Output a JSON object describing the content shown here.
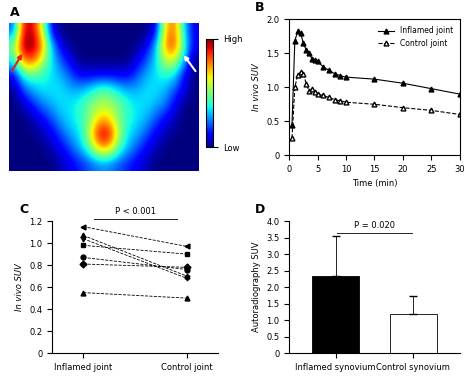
{
  "chart_data": [
    {
      "type": "image",
      "title": "A",
      "tick_labels": false,
      "cells": [
        [
          0.2,
          0.9,
          0.95,
          0.6,
          0.1,
          0,
          0,
          0,
          0,
          0,
          0,
          0,
          0,
          0,
          0,
          0.1,
          0.7,
          0.8,
          0.3,
          0.1
        ],
        [
          0.5,
          1.0,
          1.0,
          0.8,
          0.3,
          0.1,
          0,
          0,
          0,
          0,
          0,
          0,
          0,
          0,
          0.1,
          0.3,
          0.8,
          0.85,
          0.4,
          0.1
        ],
        [
          0.4,
          0.8,
          0.85,
          0.6,
          0.35,
          0.2,
          0.1,
          0,
          0,
          0,
          0,
          0,
          0,
          0.1,
          0.2,
          0.35,
          0.6,
          0.6,
          0.3,
          0
        ],
        [
          0.1,
          0.4,
          0.45,
          0.4,
          0.35,
          0.3,
          0.2,
          0.1,
          0.1,
          0.1,
          0.1,
          0.1,
          0.1,
          0.2,
          0.3,
          0.35,
          0.4,
          0.35,
          0.1,
          0
        ],
        [
          0,
          0.2,
          0.3,
          0.35,
          0.35,
          0.35,
          0.3,
          0.3,
          0.35,
          0.45,
          0.45,
          0.35,
          0.3,
          0.3,
          0.35,
          0.35,
          0.3,
          0.2,
          0.1,
          0
        ],
        [
          0,
          0.05,
          0.15,
          0.25,
          0.3,
          0.35,
          0.35,
          0.4,
          0.5,
          0.55,
          0.55,
          0.5,
          0.4,
          0.35,
          0.35,
          0.3,
          0.25,
          0.1,
          0,
          0
        ],
        [
          0,
          0,
          0.05,
          0.1,
          0.2,
          0.3,
          0.35,
          0.4,
          0.5,
          0.7,
          0.7,
          0.5,
          0.4,
          0.35,
          0.3,
          0.2,
          0.1,
          0.05,
          0,
          0
        ],
        [
          0,
          0,
          0,
          0.05,
          0.1,
          0.2,
          0.3,
          0.35,
          0.6,
          0.95,
          0.95,
          0.6,
          0.35,
          0.3,
          0.2,
          0.1,
          0.05,
          0,
          0,
          0
        ],
        [
          0,
          0,
          0,
          0,
          0.05,
          0.1,
          0.2,
          0.3,
          0.45,
          0.7,
          0.7,
          0.45,
          0.3,
          0.2,
          0.1,
          0.05,
          0,
          0,
          0,
          0
        ],
        [
          0,
          0,
          0,
          0,
          0,
          0.05,
          0.1,
          0.15,
          0.2,
          0.25,
          0.25,
          0.2,
          0.15,
          0.1,
          0.05,
          0,
          0,
          0,
          0,
          0
        ]
      ],
      "colorbar_range": [
        0,
        1
      ],
      "colorbar_ticks": [
        {
          "value": 0,
          "label": "Low"
        },
        {
          "value": 1,
          "label": "High"
        }
      ]
    },
    {
      "type": "line",
      "title": "B",
      "x_label": "Time (min)",
      "y_label": "In vivo SUV",
      "x": [
        0.5,
        1,
        1.5,
        2,
        2.5,
        3,
        3.5,
        4,
        4.5,
        5,
        6,
        7,
        8,
        9,
        10,
        15,
        20,
        25,
        30
      ],
      "series": [
        {
          "name": "Inflamed joint",
          "marker": "filled_triangle",
          "line_style": "solid",
          "values": [
            0.45,
            1.68,
            1.83,
            1.8,
            1.65,
            1.55,
            1.5,
            1.42,
            1.4,
            1.38,
            1.3,
            1.25,
            1.2,
            1.17,
            1.15,
            1.12,
            1.06,
            0.98,
            0.9
          ]
        },
        {
          "name": "Control joint",
          "marker": "open_triangle",
          "line_style": "dashed",
          "values": [
            0.25,
            1.0,
            1.18,
            1.22,
            1.2,
            1.05,
            0.95,
            0.97,
            0.93,
            0.9,
            0.88,
            0.85,
            0.82,
            0.8,
            0.78,
            0.75,
            0.7,
            0.66,
            0.6
          ]
        }
      ],
      "xlim": [
        0,
        30
      ],
      "xticks": [
        0,
        5,
        10,
        15,
        20,
        25,
        30
      ],
      "ylim": [
        0,
        2.0
      ],
      "yticks": [
        0,
        0.5,
        {
          "value": 1.0,
          "label": "1.0"
        },
        1.5,
        {
          "value": 2.0,
          "label": "2.0"
        }
      ],
      "legend": "upper right"
    },
    {
      "type": "paired",
      "title": "C",
      "y_label": "In vivo SUV",
      "categories": [
        "Inflamed joint",
        "Control joint"
      ],
      "series": [
        {
          "marker": "triangle_left",
          "values": [
            1.15,
            0.97
          ]
        },
        {
          "marker": "triangle_up",
          "values": [
            1.07,
            0.7
          ]
        },
        {
          "marker": "triangle_down",
          "values": [
            1.04,
            0.68
          ]
        },
        {
          "marker": "square",
          "values": [
            0.98,
            0.9
          ]
        },
        {
          "marker": "circle",
          "values": [
            0.87,
            0.76
          ]
        },
        {
          "marker": "diamond",
          "values": [
            0.81,
            0.78
          ]
        },
        {
          "marker": "triangle_up",
          "values": [
            0.55,
            0.5
          ]
        }
      ],
      "ylim": [
        0,
        1.2
      ],
      "yticks": [
        0,
        0.2,
        0.4,
        0.6,
        0.8,
        {
          "value": 1.0,
          "label": "1.0"
        },
        1.2
      ],
      "annotation": "P < 0.001"
    },
    {
      "type": "bar",
      "title": "D",
      "y_label": "Autoradiography SUV",
      "categories": [
        "Inflamed synovium",
        "Control synovium"
      ],
      "values": [
        2.35,
        1.2
      ],
      "errors": [
        1.2,
        0.52
      ],
      "colors": [
        "#000000",
        "#ffffff"
      ],
      "ylim": [
        0,
        4.0
      ],
      "yticks": [
        0,
        0.5,
        {
          "value": 1.0,
          "label": "1.0"
        },
        1.5,
        {
          "value": 2.0,
          "label": "2.0"
        },
        2.5,
        {
          "value": 3.0,
          "label": "3.0"
        },
        3.5,
        {
          "value": 4.0,
          "label": "4.0"
        }
      ],
      "annotation": "P = 0.020"
    }
  ]
}
